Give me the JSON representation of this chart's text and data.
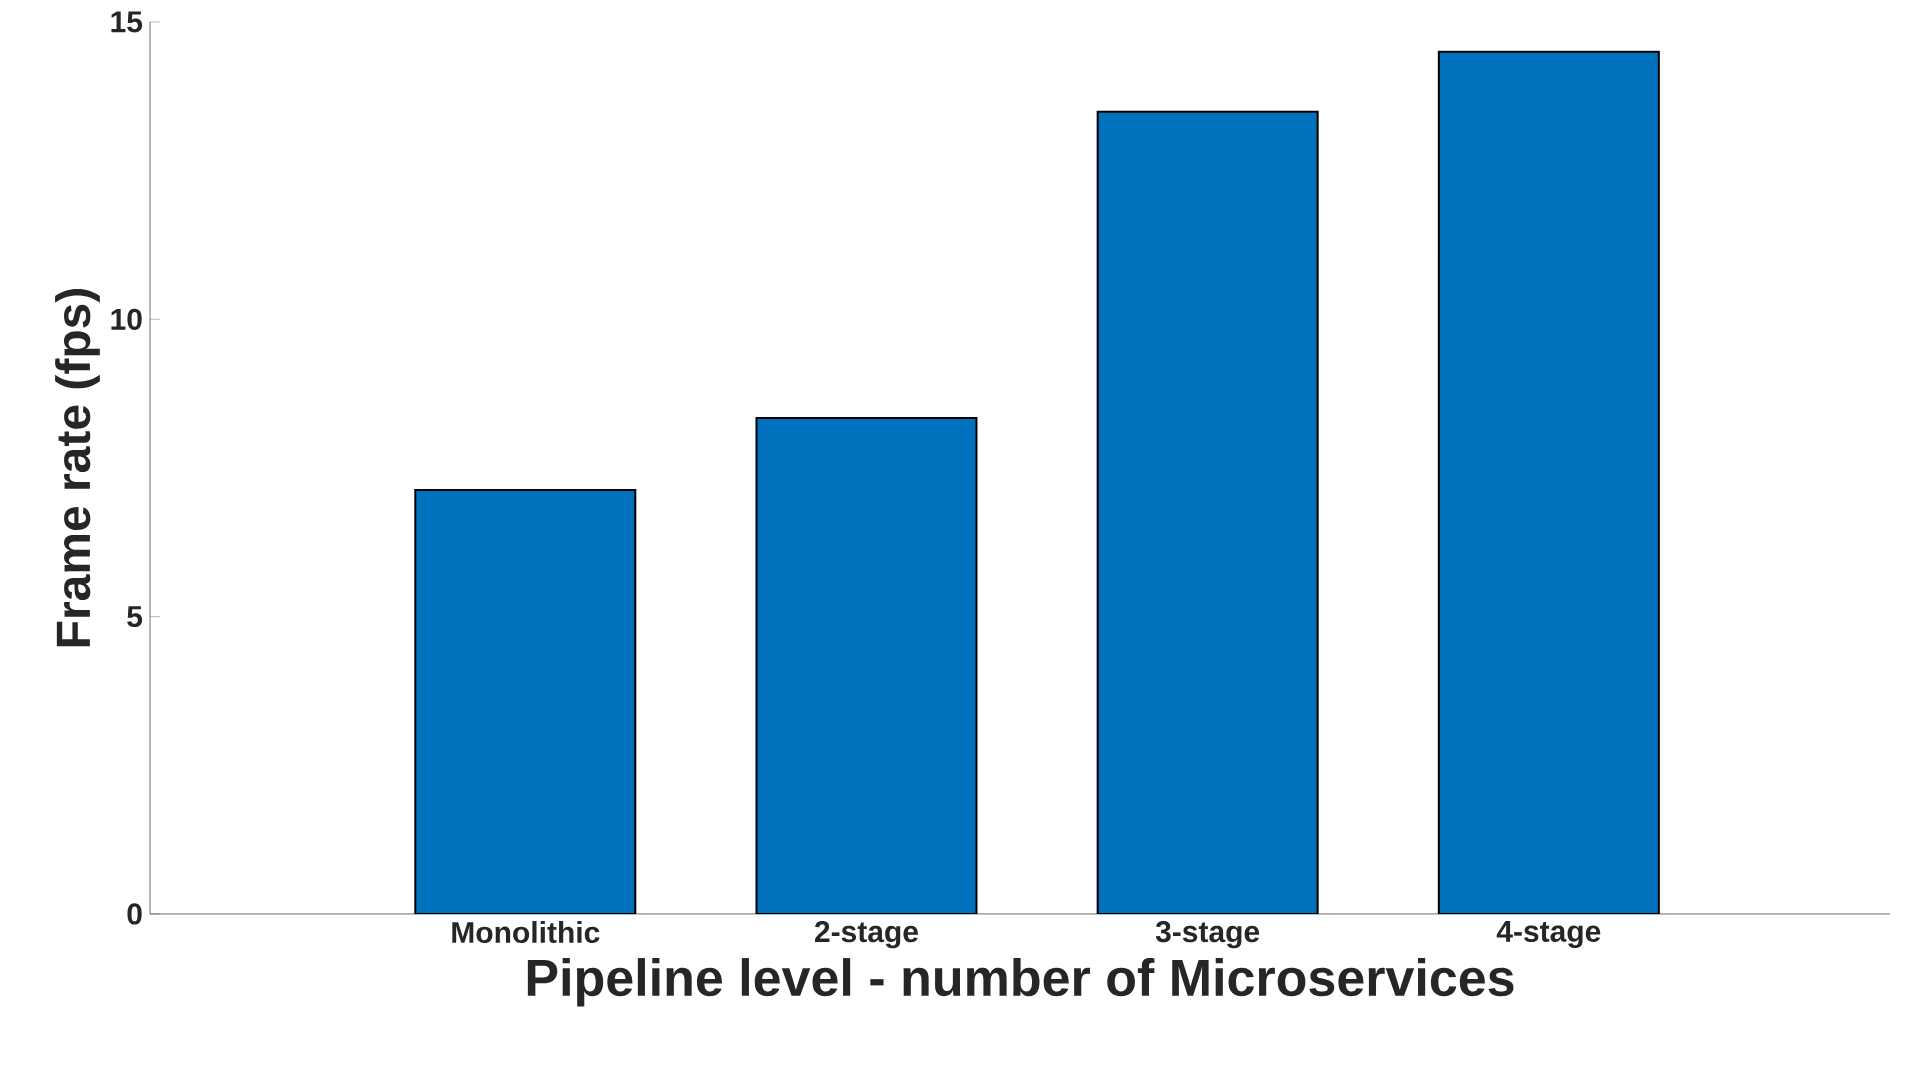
{
  "chart_data": {
    "type": "bar",
    "xlabel": "Pipeline level - number of Microservices",
    "ylabel": "Frame rate (fps)",
    "categories": [
      "Monolithic",
      "2-stage",
      "3-stage",
      "4-stage"
    ],
    "values": [
      7.13,
      8.34,
      13.49,
      14.5
    ],
    "color": "#0072bd",
    "ylim": [
      0,
      15
    ],
    "yticks": [
      0,
      5,
      10,
      15
    ]
  }
}
